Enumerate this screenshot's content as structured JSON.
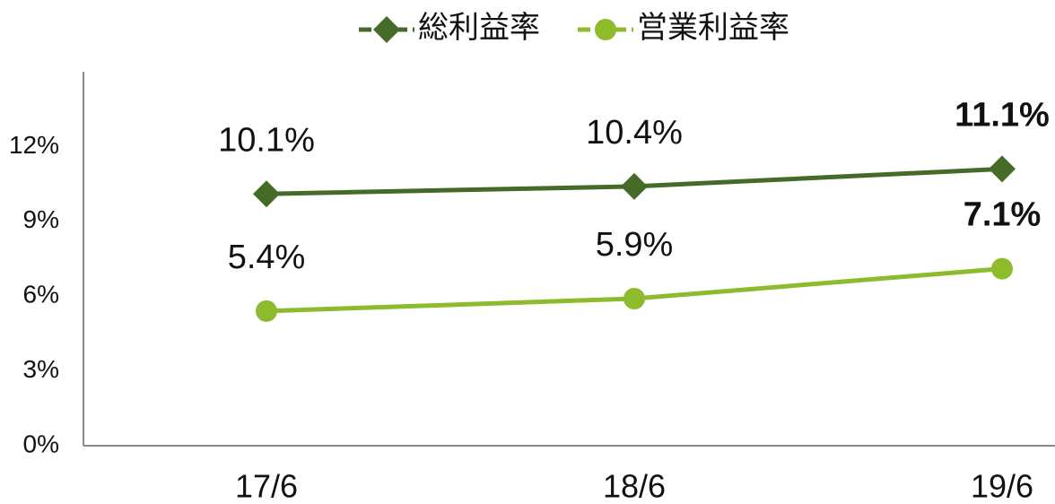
{
  "chart_data": {
    "type": "line",
    "categories": [
      "17/6",
      "18/6",
      "19/6"
    ],
    "series": [
      {
        "name": "総利益率",
        "color": "#466b28",
        "marker": "diamond",
        "values": [
          10.1,
          10.4,
          11.1
        ],
        "value_labels": [
          "10.1%",
          "10.4%",
          "11.1%"
        ]
      },
      {
        "name": "営業利益率",
        "color": "#8dbb2c",
        "marker": "circle",
        "values": [
          5.4,
          5.9,
          7.1
        ],
        "value_labels": [
          "5.4%",
          "5.9%",
          "7.1%"
        ]
      }
    ],
    "ylim": [
      0,
      15
    ],
    "yticks": [
      {
        "value": 0,
        "label": "0%"
      },
      {
        "value": 3,
        "label": "3%"
      },
      {
        "value": 6,
        "label": "6%"
      },
      {
        "value": 9,
        "label": "9%"
      },
      {
        "value": 12,
        "label": "12%"
      }
    ],
    "legend": "top"
  }
}
